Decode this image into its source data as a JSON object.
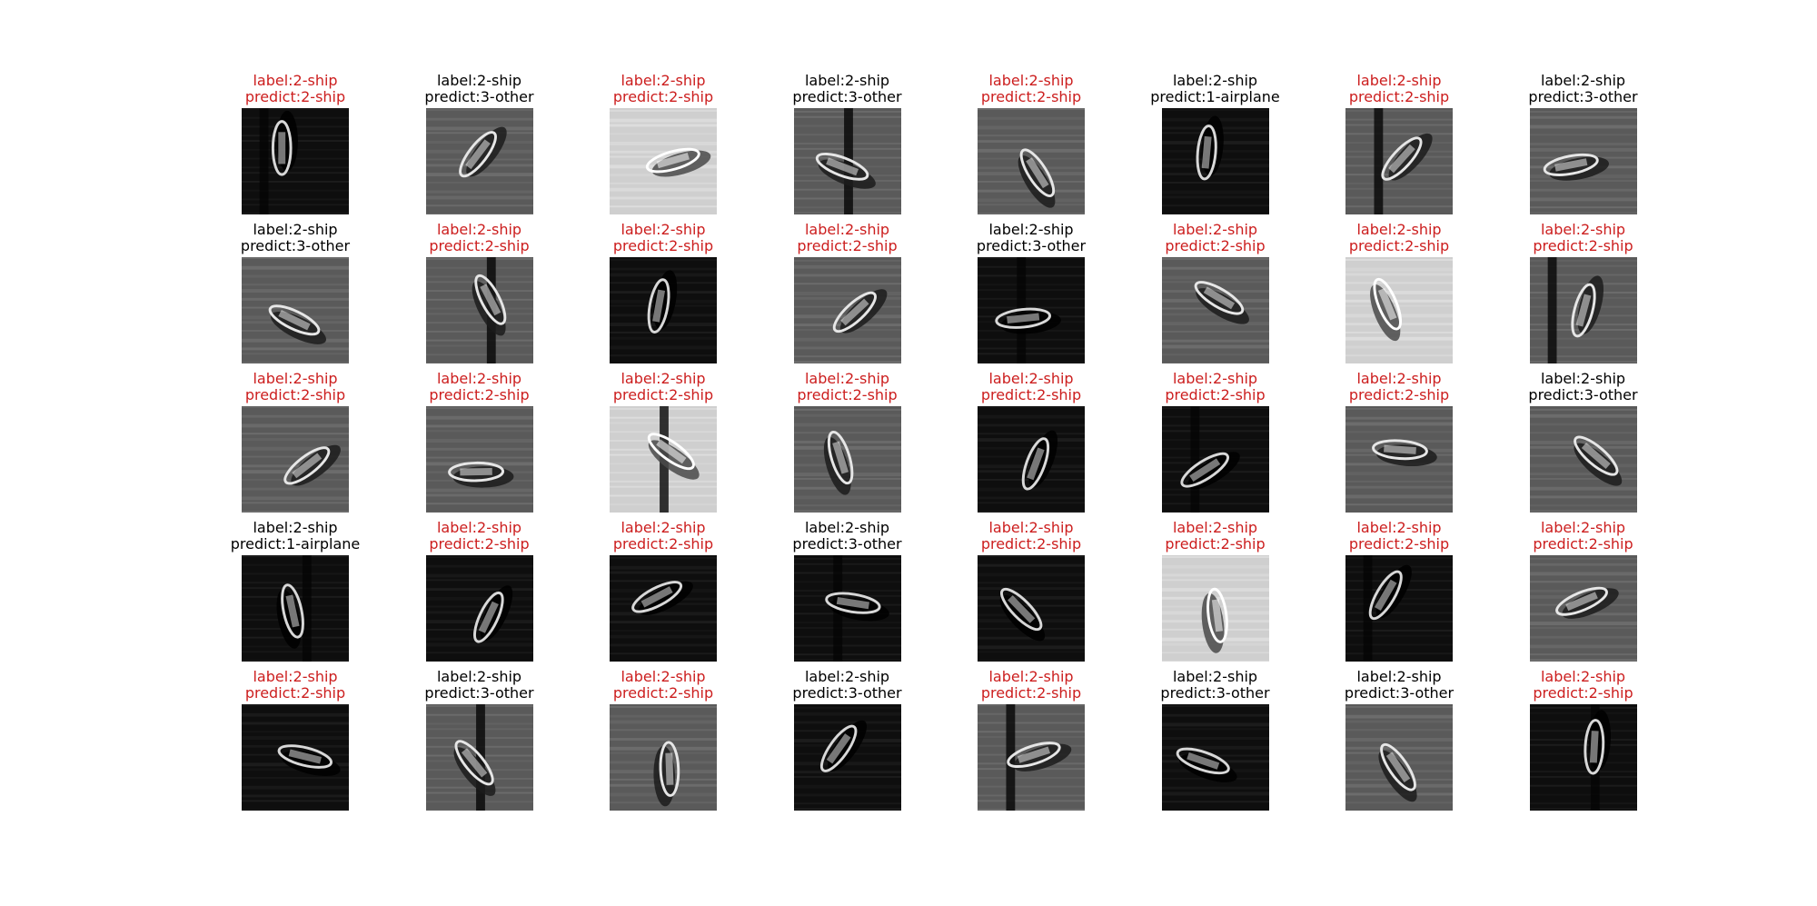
{
  "figure": {
    "colors": {
      "mismatch_text": "#cc1e1e",
      "match_text": "#000000"
    },
    "columns": 8,
    "rows": 5,
    "cells": [
      {
        "label": "label:2-ship",
        "predict": "predict:2-ship",
        "correct": true,
        "tone": "dark"
      },
      {
        "label": "label:2-ship",
        "predict": "predict:3-other",
        "correct": false,
        "tone": "mid"
      },
      {
        "label": "label:2-ship",
        "predict": "predict:2-ship",
        "correct": true,
        "tone": "light"
      },
      {
        "label": "label:2-ship",
        "predict": "predict:3-other",
        "correct": false,
        "tone": "mid"
      },
      {
        "label": "label:2-ship",
        "predict": "predict:2-ship",
        "correct": true,
        "tone": "mid"
      },
      {
        "label": "label:2-ship",
        "predict": "predict:1-airplane",
        "correct": false,
        "tone": "dark"
      },
      {
        "label": "label:2-ship",
        "predict": "predict:2-ship",
        "correct": true,
        "tone": "mid"
      },
      {
        "label": "label:2-ship",
        "predict": "predict:3-other",
        "correct": false,
        "tone": "mid"
      },
      {
        "label": "label:2-ship",
        "predict": "predict:3-other",
        "correct": false,
        "tone": "mid"
      },
      {
        "label": "label:2-ship",
        "predict": "predict:2-ship",
        "correct": true,
        "tone": "mid"
      },
      {
        "label": "label:2-ship",
        "predict": "predict:2-ship",
        "correct": true,
        "tone": "dark"
      },
      {
        "label": "label:2-ship",
        "predict": "predict:2-ship",
        "correct": true,
        "tone": "mid"
      },
      {
        "label": "label:2-ship",
        "predict": "predict:3-other",
        "correct": false,
        "tone": "dark"
      },
      {
        "label": "label:2-ship",
        "predict": "predict:2-ship",
        "correct": true,
        "tone": "mid"
      },
      {
        "label": "label:2-ship",
        "predict": "predict:2-ship",
        "correct": true,
        "tone": "light"
      },
      {
        "label": "label:2-ship",
        "predict": "predict:2-ship",
        "correct": true,
        "tone": "mid"
      },
      {
        "label": "label:2-ship",
        "predict": "predict:2-ship",
        "correct": true,
        "tone": "mid"
      },
      {
        "label": "label:2-ship",
        "predict": "predict:2-ship",
        "correct": true,
        "tone": "mid"
      },
      {
        "label": "label:2-ship",
        "predict": "predict:2-ship",
        "correct": true,
        "tone": "light"
      },
      {
        "label": "label:2-ship",
        "predict": "predict:2-ship",
        "correct": true,
        "tone": "mid"
      },
      {
        "label": "label:2-ship",
        "predict": "predict:2-ship",
        "correct": true,
        "tone": "dark"
      },
      {
        "label": "label:2-ship",
        "predict": "predict:2-ship",
        "correct": true,
        "tone": "dark"
      },
      {
        "label": "label:2-ship",
        "predict": "predict:2-ship",
        "correct": true,
        "tone": "mid"
      },
      {
        "label": "label:2-ship",
        "predict": "predict:3-other",
        "correct": false,
        "tone": "mid"
      },
      {
        "label": "label:2-ship",
        "predict": "predict:1-airplane",
        "correct": false,
        "tone": "dark"
      },
      {
        "label": "label:2-ship",
        "predict": "predict:2-ship",
        "correct": true,
        "tone": "dark"
      },
      {
        "label": "label:2-ship",
        "predict": "predict:2-ship",
        "correct": true,
        "tone": "dark"
      },
      {
        "label": "label:2-ship",
        "predict": "predict:3-other",
        "correct": false,
        "tone": "dark"
      },
      {
        "label": "label:2-ship",
        "predict": "predict:2-ship",
        "correct": true,
        "tone": "dark"
      },
      {
        "label": "label:2-ship",
        "predict": "predict:2-ship",
        "correct": true,
        "tone": "light"
      },
      {
        "label": "label:2-ship",
        "predict": "predict:2-ship",
        "correct": true,
        "tone": "dark"
      },
      {
        "label": "label:2-ship",
        "predict": "predict:2-ship",
        "correct": true,
        "tone": "mid"
      },
      {
        "label": "label:2-ship",
        "predict": "predict:2-ship",
        "correct": true,
        "tone": "dark"
      },
      {
        "label": "label:2-ship",
        "predict": "predict:3-other",
        "correct": false,
        "tone": "mid"
      },
      {
        "label": "label:2-ship",
        "predict": "predict:2-ship",
        "correct": true,
        "tone": "mid"
      },
      {
        "label": "label:2-ship",
        "predict": "predict:3-other",
        "correct": false,
        "tone": "dark"
      },
      {
        "label": "label:2-ship",
        "predict": "predict:2-ship",
        "correct": true,
        "tone": "mid"
      },
      {
        "label": "label:2-ship",
        "predict": "predict:3-other",
        "correct": false,
        "tone": "dark"
      },
      {
        "label": "label:2-ship",
        "predict": "predict:3-other",
        "correct": false,
        "tone": "mid"
      },
      {
        "label": "label:2-ship",
        "predict": "predict:2-ship",
        "correct": true,
        "tone": "dark"
      }
    ]
  }
}
